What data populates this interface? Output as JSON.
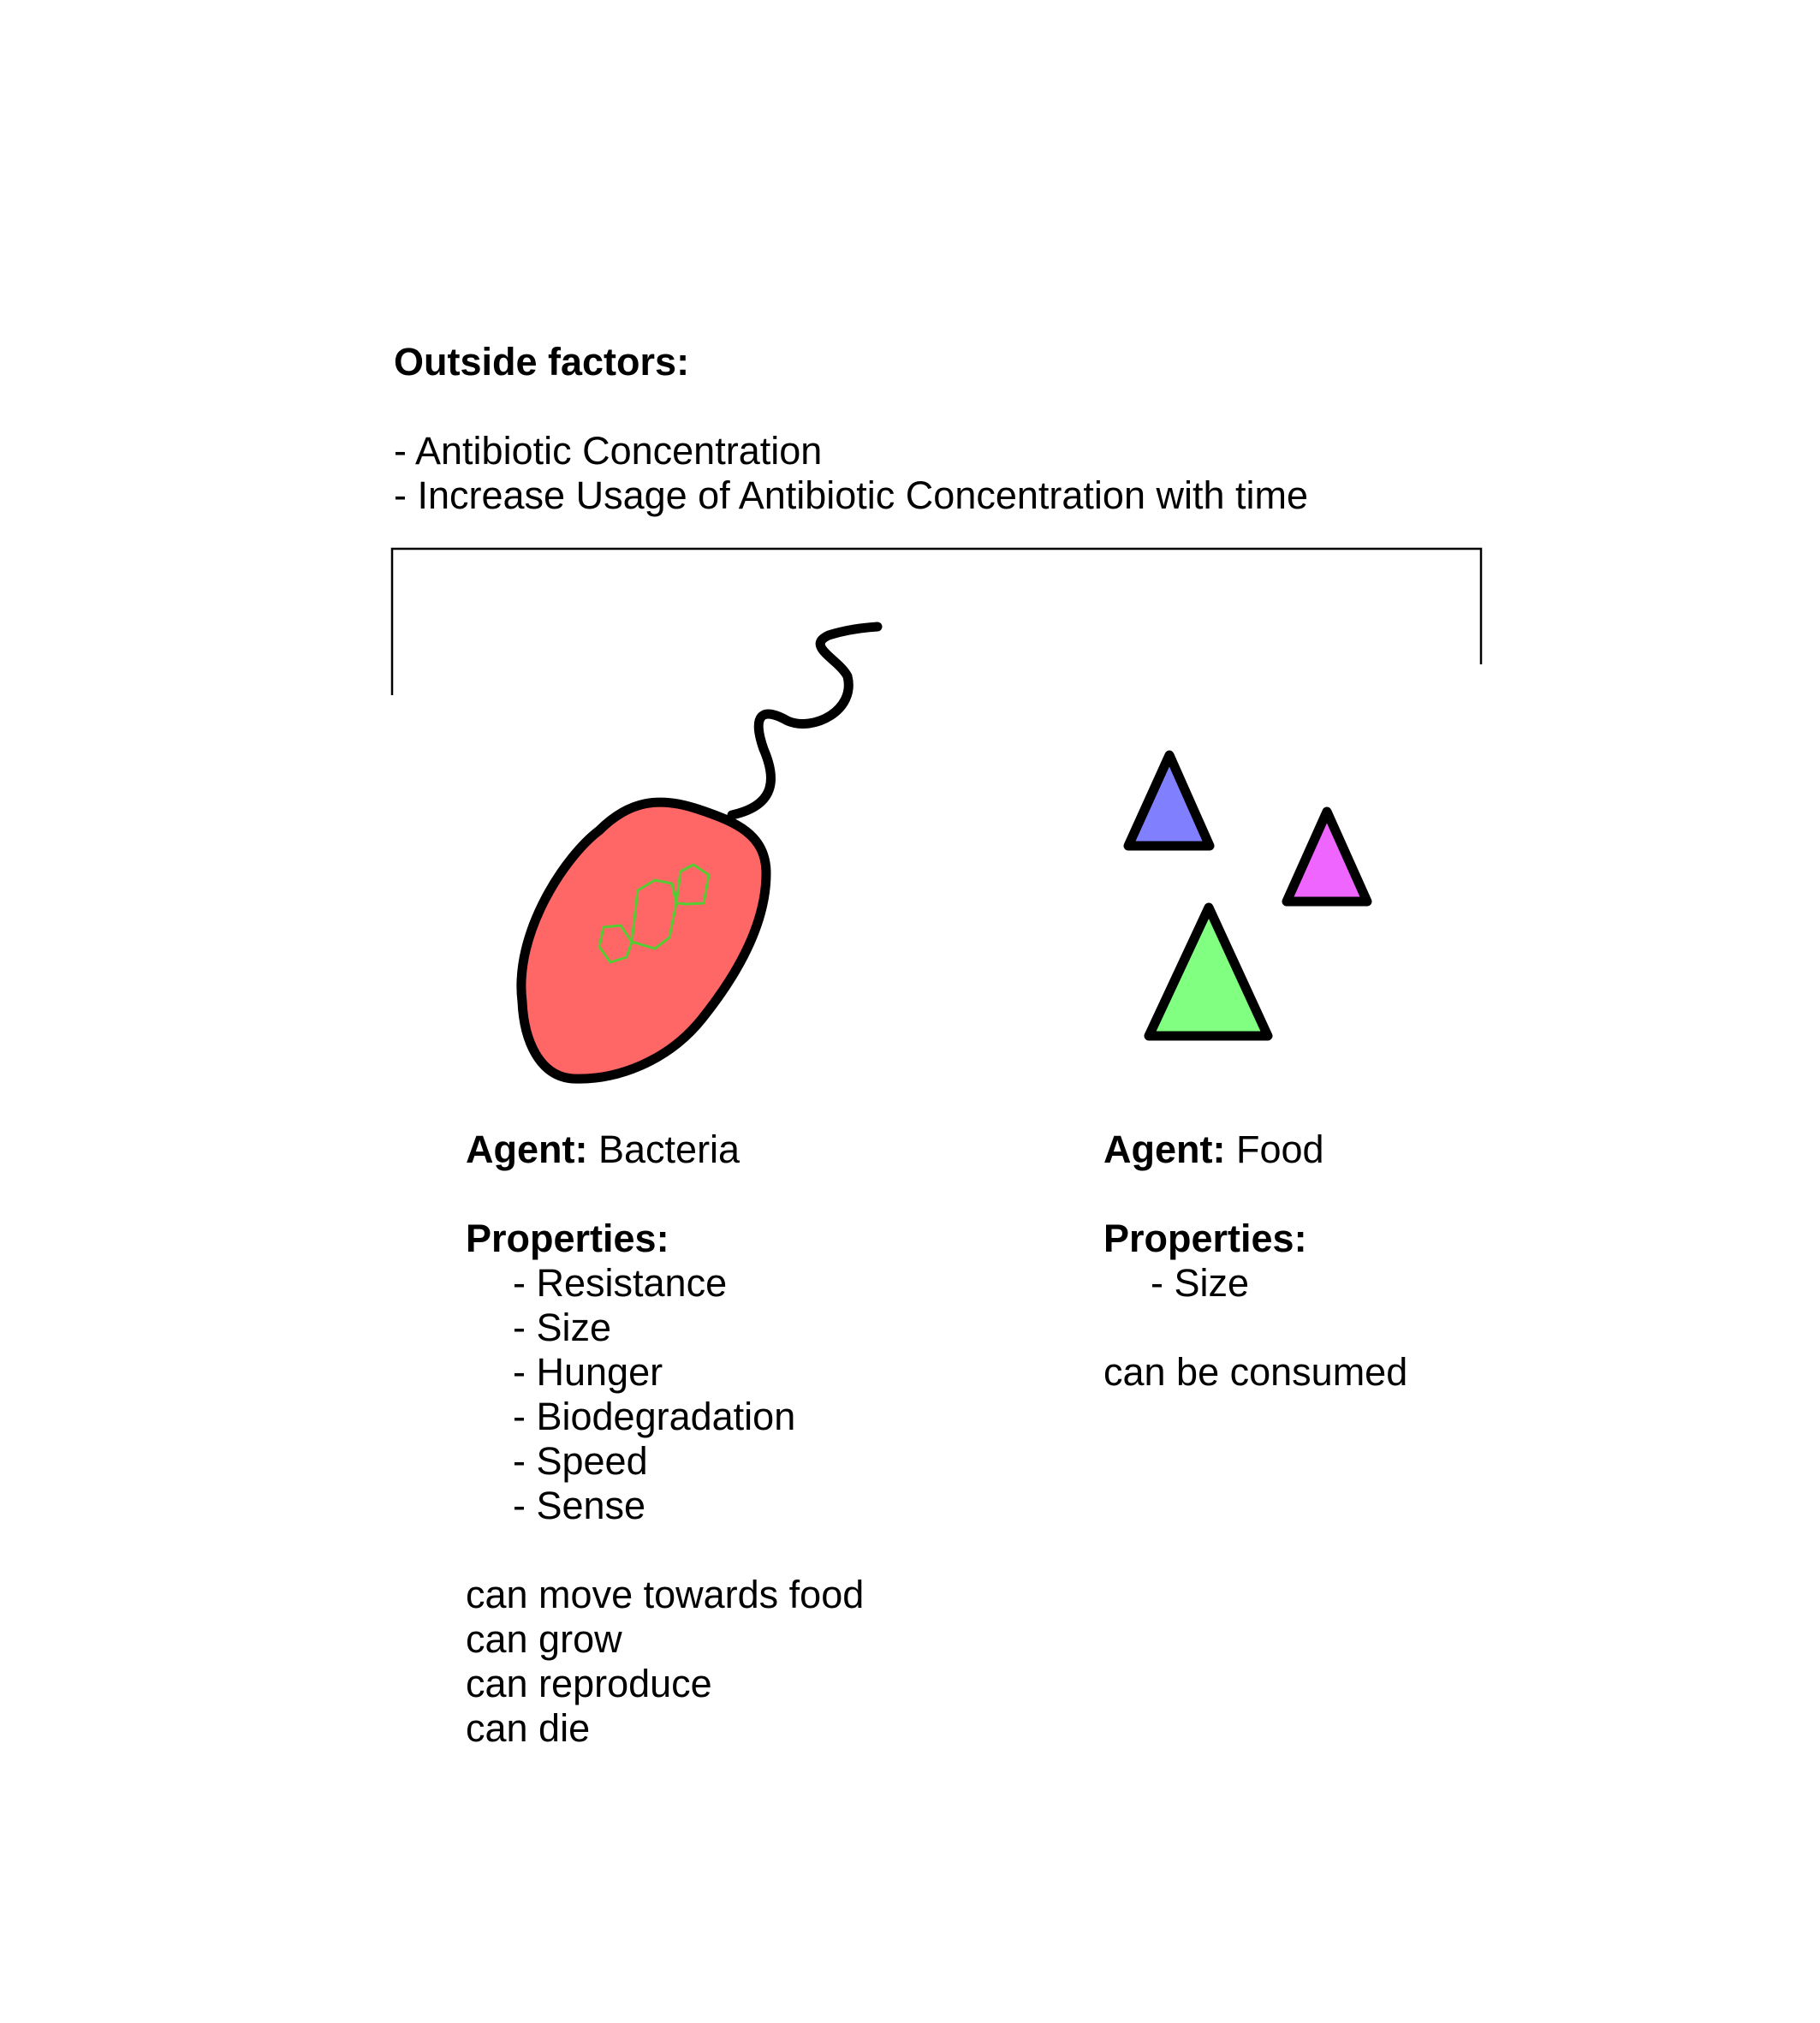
{
  "outside": {
    "heading": "Outside factors:",
    "items": [
      "- Antibiotic Concentration",
      "- Increase Usage of Antibiotic Concentration with time"
    ]
  },
  "bacteria": {
    "agent_label": "Agent:",
    "agent_name": "Bacteria",
    "properties_label": "Properties:",
    "properties": [
      "- Resistance",
      "- Size",
      "- Hunger",
      "- Biodegradation",
      "- Speed",
      "- Sense"
    ],
    "behaviors": [
      "can move towards food",
      "can grow",
      "can reproduce",
      "can die"
    ],
    "colors": {
      "body": "#ff6666",
      "dna": "#55cc33",
      "outline": "#000000"
    }
  },
  "food": {
    "agent_label": "Agent:",
    "agent_name": "Food",
    "properties_label": "Properties:",
    "properties": [
      "- Size"
    ],
    "behaviors": [
      "can be consumed"
    ],
    "colors": [
      "#8080ff",
      "#ee66ff",
      "#80ff80"
    ]
  }
}
